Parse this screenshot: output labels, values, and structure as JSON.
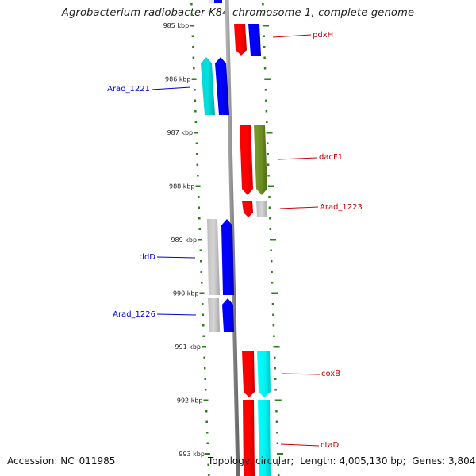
{
  "title": "Agrobacterium radiobacter K84 chromosome 1, complete genome",
  "footer": {
    "accession_label": "Accession:",
    "accession": "NC_011985",
    "topology_label": "Topology:",
    "topology": "circular",
    "length_label": "Length:",
    "length": "4,005,130 bp",
    "genes_label": "Genes:",
    "genes": "3,804"
  },
  "scale": {
    "unit": "kbp",
    "ticks": [
      985,
      986,
      987,
      988,
      989,
      990,
      991,
      992,
      993
    ]
  },
  "colors": {
    "forward_gene": "#ff0000",
    "reverse_gene": "#0000ff",
    "reverse_label": "#0000cc",
    "forward_label": "#cc0000",
    "cyan_feature": "#00e5e5",
    "olive_feature": "#6b8e23",
    "gray_feature": "#c8c8c8",
    "tick_color": "#2e7d1e",
    "backbone": "#888888"
  },
  "genes": [
    {
      "label": "pdxH",
      "strand": "forward",
      "color": "red"
    },
    {
      "label": "Arad_1221",
      "strand": "reverse",
      "color": "blue"
    },
    {
      "label": "dacF1",
      "strand": "forward",
      "color": "red"
    },
    {
      "label": "Arad_1223",
      "strand": "forward",
      "color": "red"
    },
    {
      "label": "tldD",
      "strand": "reverse",
      "color": "blue"
    },
    {
      "label": "Arad_1226",
      "strand": "reverse",
      "color": "blue"
    },
    {
      "label": "coxB",
      "strand": "forward",
      "color": "red"
    },
    {
      "label": "ctaD",
      "strand": "forward",
      "color": "red"
    }
  ]
}
